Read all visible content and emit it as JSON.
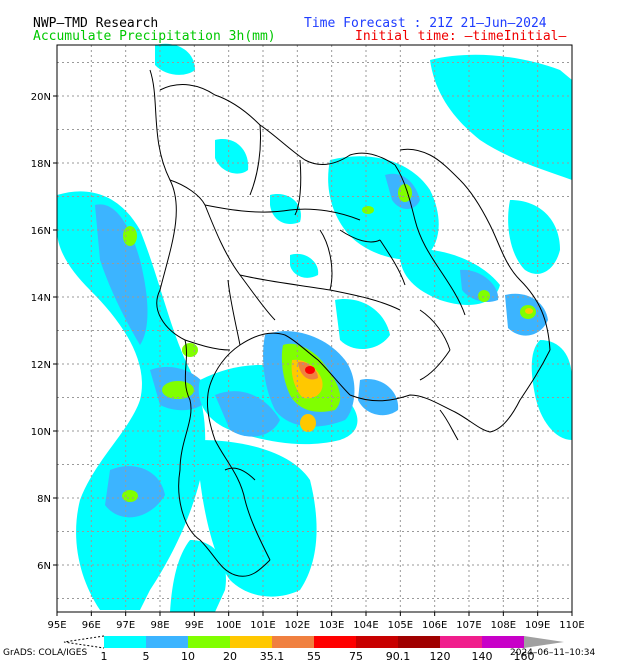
{
  "header": {
    "left_line1": "NWP–TMD Research",
    "left_line2": "Accumulate Precipitation 3h(mm)",
    "right_line1": "Time Forecast : 21Z 21–Jun–2024",
    "right_line2": "Initial time: –timeInitial–"
  },
  "colors": {
    "title_black": "#000000",
    "title_green": "#00c800",
    "title_blue": "#1e3cff",
    "title_red": "#f00000"
  },
  "axes": {
    "lon_labels": [
      "95E",
      "96E",
      "97E",
      "98E",
      "99E",
      "100E",
      "101E",
      "102E",
      "103E",
      "104E",
      "105E",
      "106E",
      "107E",
      "108E",
      "109E",
      "110E"
    ],
    "lat_labels": [
      "20N",
      "18N",
      "16N",
      "14N",
      "12N",
      "10N",
      "8N",
      "6N"
    ]
  },
  "legend": {
    "labels": [
      "1",
      "5",
      "10",
      "20",
      "35.1",
      "55",
      "75",
      "90.1",
      "120",
      "140",
      "160"
    ],
    "colors": [
      "#00ffff",
      "#3cb4ff",
      "#80ff00",
      "#ffc800",
      "#f08040",
      "#ff0000",
      "#c80000",
      "#a00000",
      "#f01e8c",
      "#c800c8",
      "#a0a0a0"
    ]
  },
  "footer": {
    "grads": "GrADS: COLA/IGES",
    "timestamp": "2024–06–11–10:34"
  }
}
